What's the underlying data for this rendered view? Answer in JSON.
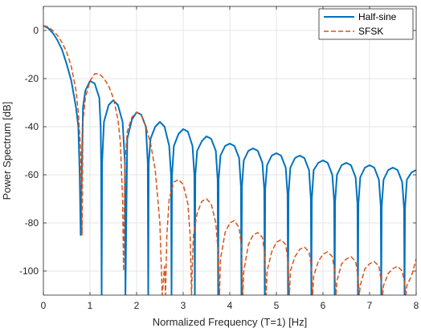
{
  "chart_data": {
    "type": "line",
    "title": "",
    "xlabel": "Normalized Frequency (T=1) [Hz]",
    "ylabel": "Power Spectrum [dB]",
    "xlim": [
      0,
      8
    ],
    "ylim": [
      -110,
      10
    ],
    "xticks": [
      0,
      1,
      2,
      3,
      4,
      5,
      6,
      7,
      8
    ],
    "yticks": [
      0,
      -20,
      -40,
      -60,
      -80,
      -100
    ],
    "grid": true,
    "legend_position": "top-right",
    "series": [
      {
        "name": "Half-sine",
        "color": "#0072BD",
        "style": "solid",
        "x": [
          0,
          0.1,
          0.2,
          0.3,
          0.4,
          0.5,
          0.6,
          0.7,
          0.75,
          0.78,
          0.8,
          0.85,
          0.9,
          1.0,
          1.1,
          1.2,
          1.23,
          1.24,
          1.25,
          1.26,
          1.3,
          1.4,
          1.5,
          1.6,
          1.7,
          1.75,
          1.76,
          1.8,
          1.9,
          2.0,
          2.1,
          2.2,
          2.24,
          2.25,
          2.26,
          2.3,
          2.4,
          2.5,
          2.6,
          2.7,
          2.74,
          2.75,
          2.76,
          2.8,
          2.9,
          3.0,
          3.1,
          3.2,
          3.24,
          3.25,
          3.26,
          3.3,
          3.4,
          3.5,
          3.6,
          3.7,
          3.74,
          3.75,
          3.76,
          3.8,
          3.9,
          4.0,
          4.1,
          4.2,
          4.24,
          4.25,
          4.26,
          4.3,
          4.4,
          4.5,
          4.6,
          4.7,
          4.74,
          4.75,
          4.76,
          4.8,
          4.9,
          5.0,
          5.1,
          5.2,
          5.24,
          5.25,
          5.26,
          5.3,
          5.4,
          5.5,
          5.6,
          5.7,
          5.74,
          5.75,
          5.76,
          5.8,
          5.9,
          6.0,
          6.1,
          6.2,
          6.24,
          6.25,
          6.26,
          6.3,
          6.4,
          6.5,
          6.6,
          6.7,
          6.74,
          6.75,
          6.76,
          6.8,
          6.9,
          7.0,
          7.1,
          7.2,
          7.24,
          7.25,
          7.26,
          7.3,
          7.4,
          7.5,
          7.6,
          7.7,
          7.74,
          7.75,
          7.76,
          7.8,
          7.9,
          8.0
        ],
        "y": [
          2,
          1,
          -1,
          -4,
          -8,
          -14,
          -21,
          -32,
          -40,
          -60,
          -85,
          -32,
          -25,
          -21,
          -22,
          -28,
          -40,
          -55,
          -110,
          -55,
          -38,
          -31,
          -29,
          -31,
          -38,
          -55,
          -110,
          -45,
          -37,
          -34,
          -35,
          -40,
          -55,
          -110,
          -55,
          -45,
          -40,
          -38,
          -40,
          -48,
          -60,
          -110,
          -60,
          -48,
          -43,
          -41,
          -42,
          -48,
          -60,
          -110,
          -60,
          -50,
          -46,
          -44,
          -45,
          -50,
          -62,
          -110,
          -62,
          -52,
          -48,
          -47,
          -48,
          -53,
          -65,
          -110,
          -65,
          -54,
          -50,
          -49,
          -50,
          -55,
          -66,
          -110,
          -66,
          -56,
          -52,
          -51,
          -52,
          -57,
          -68,
          -110,
          -68,
          -57,
          -53,
          -52,
          -53,
          -58,
          -70,
          -110,
          -70,
          -58,
          -55,
          -54,
          -55,
          -60,
          -71,
          -110,
          -71,
          -60,
          -56,
          -55,
          -56,
          -61,
          -72,
          -110,
          -72,
          -61,
          -57,
          -56,
          -57,
          -62,
          -73,
          -110,
          -73,
          -62,
          -58,
          -57,
          -58,
          -63,
          -74,
          -110,
          -74,
          -62,
          -59,
          -58
        ]
      },
      {
        "name": "SFSK",
        "color": "#D95319",
        "style": "dashed",
        "x": [
          0,
          0.1,
          0.2,
          0.3,
          0.4,
          0.5,
          0.6,
          0.7,
          0.75,
          0.8,
          0.83,
          0.85,
          0.9,
          1.0,
          1.1,
          1.2,
          1.3,
          1.4,
          1.5,
          1.6,
          1.65,
          1.7,
          1.72,
          1.75,
          1.8,
          1.9,
          2.0,
          2.1,
          2.2,
          2.3,
          2.4,
          2.5,
          2.55,
          2.6,
          2.62,
          2.65,
          2.7,
          2.8,
          2.9,
          3.0,
          3.1,
          3.15,
          3.18,
          3.2,
          3.22,
          3.3,
          3.4,
          3.5,
          3.6,
          3.7,
          3.75,
          3.78,
          3.8,
          3.9,
          4.0,
          4.1,
          4.2,
          4.25,
          4.28,
          4.3,
          4.4,
          4.5,
          4.6,
          4.7,
          4.75,
          4.78,
          4.8,
          4.9,
          5.0,
          5.1,
          5.2,
          5.25,
          5.28,
          5.3,
          5.4,
          5.5,
          5.6,
          5.7,
          5.75,
          5.78,
          5.8,
          5.9,
          6.0,
          6.1,
          6.2,
          6.25,
          6.28,
          6.3,
          6.4,
          6.5,
          6.6,
          6.7,
          6.75,
          6.78,
          6.8,
          6.9,
          7.0,
          7.1,
          7.2,
          7.25,
          7.28,
          7.3,
          7.4,
          7.5,
          7.6,
          7.7,
          7.75,
          7.78,
          7.8,
          7.9,
          8.0
        ],
        "y": [
          2,
          1.5,
          0,
          -2,
          -5,
          -9,
          -15,
          -25,
          -34,
          -50,
          -85,
          -38,
          -28,
          -21,
          -18,
          -18,
          -20,
          -23,
          -28,
          -37,
          -46,
          -70,
          -100,
          -55,
          -42,
          -36,
          -34,
          -35,
          -40,
          -47,
          -58,
          -80,
          -110,
          -98,
          -110,
          -85,
          -70,
          -63,
          -62,
          -64,
          -72,
          -85,
          -110,
          -95,
          -85,
          -76,
          -71,
          -70,
          -72,
          -80,
          -92,
          -110,
          -95,
          -84,
          -80,
          -79,
          -82,
          -90,
          -110,
          -100,
          -89,
          -85,
          -84,
          -86,
          -93,
          -110,
          -100,
          -92,
          -88,
          -87,
          -89,
          -96,
          -110,
          -100,
          -94,
          -91,
          -90,
          -92,
          -98,
          -110,
          -102,
          -96,
          -93,
          -92,
          -94,
          -100,
          -110,
          -104,
          -97,
          -95,
          -94,
          -96,
          -102,
          -110,
          -106,
          -99,
          -97,
          -96,
          -98,
          -104,
          -110,
          -106,
          -101,
          -99,
          -98,
          -100,
          -105,
          -110,
          -106,
          -102,
          -95
        ]
      }
    ]
  }
}
